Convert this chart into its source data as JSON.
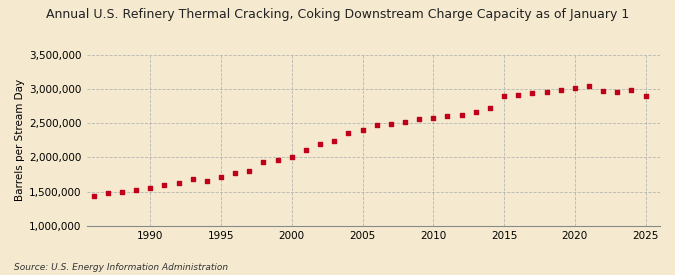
{
  "title": "Annual U.S. Refinery Thermal Cracking, Coking Downstream Charge Capacity as of January 1",
  "ylabel": "Barrels per Stream Day",
  "source": "Source: U.S. Energy Information Administration",
  "background_color": "#f5ead0",
  "dot_color": "#c0001a",
  "grid_color": "#b0b0b0",
  "years": [
    1986,
    1987,
    1988,
    1989,
    1990,
    1991,
    1992,
    1993,
    1994,
    1995,
    1996,
    1997,
    1998,
    1999,
    2000,
    2001,
    2002,
    2003,
    2004,
    2005,
    2006,
    2007,
    2008,
    2009,
    2010,
    2011,
    2012,
    2013,
    2014,
    2015,
    2016,
    2017,
    2018,
    2019,
    2020,
    2021,
    2022,
    2023,
    2024,
    2025
  ],
  "values": [
    1430000,
    1480000,
    1500000,
    1530000,
    1560000,
    1600000,
    1630000,
    1680000,
    1650000,
    1720000,
    1770000,
    1800000,
    1930000,
    1960000,
    2000000,
    2110000,
    2200000,
    2240000,
    2360000,
    2400000,
    2470000,
    2490000,
    2520000,
    2560000,
    2570000,
    2600000,
    2620000,
    2660000,
    2720000,
    2900000,
    2910000,
    2940000,
    2960000,
    2990000,
    3020000,
    3040000,
    2970000,
    2960000,
    2990000,
    2900000
  ],
  "ylim": [
    1000000,
    3500000
  ],
  "yticks": [
    1000000,
    1500000,
    2000000,
    2500000,
    3000000,
    3500000
  ],
  "xlim": [
    1985.5,
    2026
  ],
  "xticks": [
    1990,
    1995,
    2000,
    2005,
    2010,
    2015,
    2020,
    2025
  ]
}
